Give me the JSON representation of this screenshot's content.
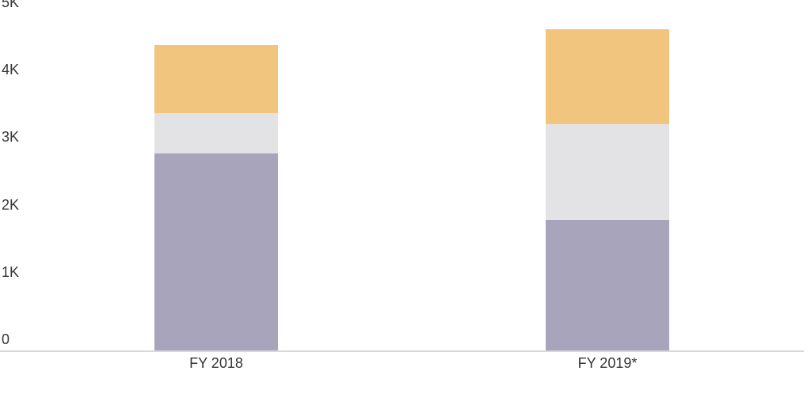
{
  "chart_data": {
    "type": "bar",
    "stacked": true,
    "title": "",
    "xlabel": "",
    "ylabel": "",
    "categories": [
      "FY 2018",
      "FY 2019*"
    ],
    "series": [
      {
        "name": "purple-bottom",
        "color": "#A8A4BC",
        "values": [
          2920,
          1940
        ]
      },
      {
        "name": "gray-middle",
        "color": "#E3E3E5",
        "values": [
          600,
          1410
        ]
      },
      {
        "name": "orange-top",
        "color": "#F2C57E",
        "values": [
          1010,
          1410
        ]
      }
    ],
    "totals": [
      4530,
      4760
    ],
    "ylim": [
      0,
      5000
    ],
    "yticks": [
      {
        "value": 0,
        "label": "0"
      },
      {
        "value": 1000,
        "label": "1K"
      },
      {
        "value": 2000,
        "label": "2K"
      },
      {
        "value": 3000,
        "label": "3K"
      },
      {
        "value": 4000,
        "label": "4K"
      },
      {
        "value": 5000,
        "label": "5K"
      }
    ],
    "grid": false,
    "legend": "none",
    "colors": {
      "axis_line": "#D8D8D8",
      "text": "#363636",
      "background": "#FFFFFF"
    }
  }
}
